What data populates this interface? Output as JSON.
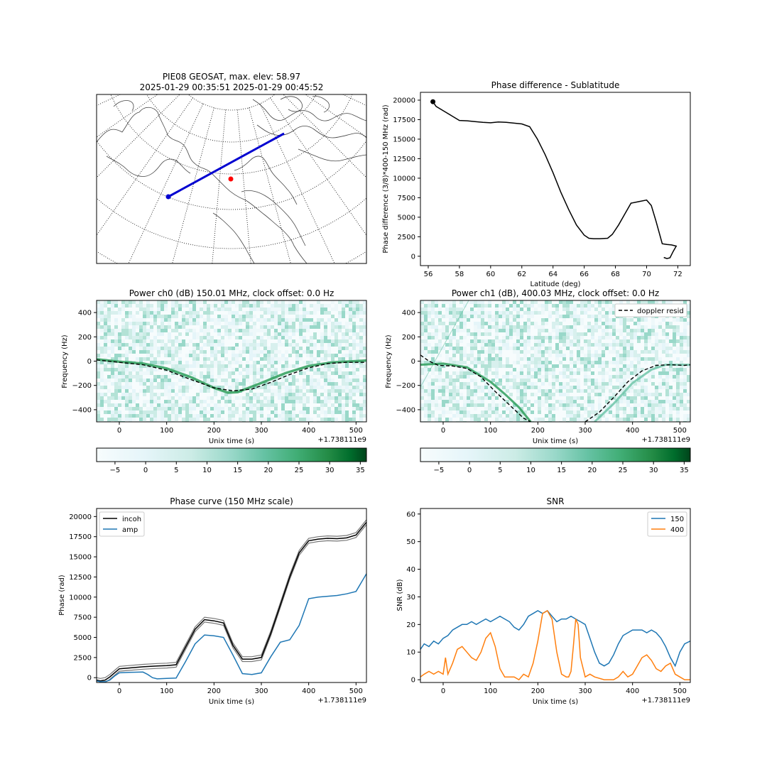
{
  "chart_data": [
    {
      "id": "map",
      "type": "map",
      "title": [
        "PIE08 GEOSAT, max. elev: 58.97",
        "2025-01-29 00:35:51 2025-01-29 00:45:52"
      ],
      "colors": {
        "track": "#0000d0",
        "station": "#ff0000"
      }
    },
    {
      "id": "phase_lat",
      "type": "line",
      "title": "Phase difference - Sublatitude",
      "xlabel": "Latitude (deg)",
      "ylabel": "Phase difference (3/8)*400-150 MHz (rad)",
      "xlim": [
        55.5,
        72.8
      ],
      "ylim": [
        -1200,
        21000
      ],
      "xticks": [
        56,
        58,
        60,
        62,
        64,
        66,
        68,
        70,
        72
      ],
      "xtick_labels": [
        "56",
        "58",
        "60",
        "62",
        "64",
        "66",
        "68",
        "70",
        "72"
      ],
      "yticks": [
        0,
        2500,
        5000,
        7500,
        10000,
        12500,
        15000,
        17500,
        20000
      ],
      "ytick_labels": [
        "0",
        "2500",
        "5000",
        "7500",
        "10000",
        "12500",
        "15000",
        "17500",
        "20000"
      ],
      "x": [
        56.3,
        56.5,
        57,
        57.5,
        58,
        58.5,
        59,
        59.5,
        60,
        60.5,
        61,
        61.5,
        62,
        62.5,
        63,
        63.5,
        64,
        64.5,
        65,
        65.5,
        66,
        66.3,
        66.6,
        67,
        67.5,
        67.8,
        68.2,
        68.6,
        69,
        69.5,
        70,
        70.3,
        70.6,
        71,
        71.3,
        71.6,
        71.9,
        71.7,
        71.5,
        71.3,
        71.1
      ],
      "y": [
        19800,
        19200,
        18600,
        18000,
        17400,
        17350,
        17250,
        17150,
        17100,
        17200,
        17150,
        17050,
        16950,
        16600,
        15000,
        13000,
        10700,
        8200,
        6000,
        4000,
        2700,
        2300,
        2250,
        2250,
        2300,
        2800,
        4000,
        5400,
        6800,
        7000,
        7200,
        6500,
        4500,
        1600,
        1500,
        1450,
        1300,
        600,
        -200,
        -300,
        -150
      ],
      "marker": {
        "x": 56.3,
        "y": 19800
      },
      "colors": {
        "line": "#000000"
      }
    },
    {
      "id": "power_ch0",
      "type": "heatmap",
      "title": "Power ch0 (dB) 150.01 MHz, clock offset: 0.0 Hz",
      "xlabel": "Unix time (s)",
      "ylabel": "Frequency (Hz)",
      "offset_label": "+1.738111e9",
      "xlim": [
        -48,
        522
      ],
      "ylim": [
        -500,
        500
      ],
      "xticks": [
        0,
        100,
        200,
        300,
        400,
        500
      ],
      "xtick_labels": [
        "0",
        "100",
        "200",
        "300",
        "400",
        "500"
      ],
      "yticks": [
        -400,
        -200,
        0,
        200,
        400
      ],
      "ytick_labels": [
        "−400",
        "−200",
        "0",
        "200",
        "400"
      ],
      "signal_x": [
        -48,
        0,
        50,
        100,
        150,
        200,
        230,
        250,
        300,
        350,
        400,
        450,
        500,
        522
      ],
      "signal_y": [
        15,
        -5,
        -20,
        -60,
        -130,
        -220,
        -260,
        -255,
        -180,
        -100,
        -40,
        -10,
        0,
        5
      ],
      "doppler_x": [
        -48,
        0,
        50,
        100,
        150,
        200,
        240,
        280,
        320,
        360,
        400,
        440,
        480,
        522
      ],
      "doppler_y": [
        10,
        -10,
        -30,
        -75,
        -150,
        -220,
        -245,
        -230,
        -175,
        -110,
        -55,
        -20,
        -10,
        -10
      ],
      "colorbar": {
        "ticks": [
          -5,
          0,
          5,
          10,
          15,
          20,
          25,
          30,
          35
        ],
        "tick_labels": [
          "−5",
          "0",
          "5",
          "10",
          "15",
          "20",
          "25",
          "30",
          "35"
        ],
        "range": [
          -8,
          36
        ]
      },
      "colors": {
        "signal": "#2e9e5b",
        "doppler": "#000000"
      }
    },
    {
      "id": "power_ch1",
      "type": "heatmap",
      "title": "Power ch1 (dB), 400.03 MHz, clock offset: 0.0 Hz",
      "xlabel": "Unix time (s)",
      "ylabel": "Frequency (Hz)",
      "offset_label": "+1.738111e9",
      "xlim": [
        -48,
        522
      ],
      "ylim": [
        -500,
        500
      ],
      "xticks": [
        0,
        100,
        200,
        300,
        400,
        500
      ],
      "xtick_labels": [
        "0",
        "100",
        "200",
        "300",
        "400",
        "500"
      ],
      "yticks": [
        -400,
        -200,
        0,
        200,
        400
      ],
      "ytick_labels": [
        "−400",
        "−200",
        "0",
        "200",
        "400"
      ],
      "legend": [
        "doppler resid"
      ],
      "legend_position": "top-right",
      "signal_x": [
        -48,
        0,
        50,
        100,
        130,
        160,
        185
      ],
      "signal_y": [
        -30,
        -20,
        -50,
        -170,
        -270,
        -380,
        -500
      ],
      "signal2_x": [
        320,
        360,
        400,
        440,
        470,
        522
      ],
      "signal2_y": [
        -500,
        -350,
        -180,
        -70,
        -30,
        -30
      ],
      "doppler_x": [
        -48,
        -30,
        -10,
        20,
        50,
        80,
        110,
        140,
        170,
        185
      ],
      "doppler_y": [
        50,
        0,
        -35,
        -40,
        -60,
        -130,
        -250,
        -360,
        -470,
        -500
      ],
      "doppler2_x": [
        300,
        330,
        360,
        390,
        420,
        450,
        480,
        510,
        522
      ],
      "doppler2_y": [
        -500,
        -420,
        -300,
        -170,
        -80,
        -35,
        -30,
        -35,
        -30
      ],
      "colorbar": {
        "ticks": [
          -5,
          0,
          5,
          10,
          15,
          20,
          25,
          30,
          35
        ],
        "tick_labels": [
          "−5",
          "0",
          "5",
          "10",
          "15",
          "20",
          "25",
          "30",
          "35"
        ],
        "range": [
          -8,
          36
        ]
      },
      "colors": {
        "signal": "#2e9e5b",
        "doppler": "#000000"
      }
    },
    {
      "id": "phase_curve",
      "type": "line",
      "title": "Phase curve (150 MHz scale)",
      "xlabel": "Unix time (s)",
      "ylabel": "Phase (rad)",
      "offset_label": "+1.738111e9",
      "xlim": [
        -48,
        522
      ],
      "ylim": [
        -600,
        21000
      ],
      "xticks": [
        0,
        100,
        200,
        300,
        400,
        500
      ],
      "xtick_labels": [
        "0",
        "100",
        "200",
        "300",
        "400",
        "500"
      ],
      "yticks": [
        0,
        2500,
        5000,
        7500,
        10000,
        12500,
        15000,
        17500,
        20000
      ],
      "ytick_labels": [
        "0",
        "2500",
        "5000",
        "7500",
        "10000",
        "12500",
        "15000",
        "17500",
        "20000"
      ],
      "legend": [
        "incoh",
        "amp"
      ],
      "legend_position": "top-left",
      "series": [
        {
          "name": "incoh",
          "x": [
            -48,
            -40,
            -30,
            -20,
            -10,
            0,
            20,
            50,
            80,
            100,
            120,
            140,
            160,
            180,
            200,
            220,
            240,
            260,
            280,
            300,
            320,
            340,
            360,
            380,
            400,
            420,
            440,
            460,
            480,
            500,
            522
          ],
          "y": [
            -300,
            -400,
            -300,
            100,
            600,
            1100,
            1200,
            1350,
            1450,
            1500,
            1600,
            3800,
            6000,
            7200,
            7050,
            6800,
            4000,
            2300,
            2300,
            2500,
            5500,
            9000,
            12500,
            15500,
            17000,
            17200,
            17300,
            17250,
            17350,
            17700,
            19300
          ]
        },
        {
          "name": "amp",
          "x": [
            -48,
            -40,
            -30,
            -20,
            -10,
            0,
            20,
            50,
            60,
            70,
            80,
            100,
            120,
            140,
            160,
            180,
            200,
            220,
            240,
            260,
            280,
            300,
            320,
            340,
            360,
            380,
            400,
            420,
            440,
            460,
            480,
            500,
            522
          ],
          "y": [
            -400,
            -500,
            -500,
            -300,
            200,
            600,
            650,
            700,
            400,
            0,
            -150,
            -100,
            -50,
            2000,
            4200,
            5300,
            5200,
            5000,
            2800,
            500,
            400,
            600,
            2600,
            4400,
            4700,
            6500,
            9800,
            10000,
            10100,
            10200,
            10400,
            10700,
            12900
          ]
        }
      ],
      "envelope_offset": 300,
      "colors": {
        "incoh": "#000000",
        "envelope": "#777777",
        "amp": "#1f77b4"
      }
    },
    {
      "id": "snr",
      "type": "line",
      "title": "SNR",
      "xlabel": "Unix time (s)",
      "ylabel": "SNR (dB)",
      "offset_label": "+1.738111e9",
      "xlim": [
        -48,
        522
      ],
      "ylim": [
        -1,
        62
      ],
      "xticks": [
        0,
        100,
        200,
        300,
        400,
        500
      ],
      "xtick_labels": [
        "0",
        "100",
        "200",
        "300",
        "400",
        "500"
      ],
      "yticks": [
        0,
        10,
        20,
        30,
        40,
        50,
        60
      ],
      "ytick_labels": [
        "0",
        "10",
        "20",
        "30",
        "40",
        "50",
        "60"
      ],
      "legend": [
        "150",
        "400"
      ],
      "legend_position": "top-right",
      "series": [
        {
          "name": "150",
          "x": [
            -48,
            -40,
            -30,
            -20,
            -10,
            0,
            10,
            20,
            30,
            40,
            50,
            60,
            70,
            80,
            90,
            100,
            110,
            120,
            130,
            140,
            150,
            160,
            170,
            180,
            190,
            200,
            210,
            220,
            230,
            240,
            250,
            260,
            270,
            280,
            290,
            300,
            310,
            320,
            330,
            340,
            350,
            360,
            370,
            380,
            390,
            400,
            410,
            420,
            430,
            440,
            450,
            460,
            470,
            480,
            490,
            500,
            510,
            522
          ],
          "y": [
            11,
            13,
            12,
            14,
            13,
            15,
            16,
            18,
            19,
            20,
            20,
            21,
            20,
            21,
            22,
            21,
            22,
            23,
            22,
            21,
            19,
            18,
            20,
            23,
            24,
            25,
            24,
            25,
            23,
            21,
            22,
            22,
            23,
            22,
            21,
            20,
            15,
            10,
            6,
            5,
            6,
            9,
            13,
            16,
            17,
            18,
            18,
            18,
            17,
            18,
            17,
            15,
            12,
            8,
            5,
            10,
            13,
            14
          ]
        },
        {
          "name": "400",
          "x": [
            -48,
            -40,
            -30,
            -20,
            -10,
            0,
            5,
            10,
            20,
            30,
            40,
            50,
            60,
            70,
            80,
            90,
            100,
            110,
            120,
            130,
            140,
            150,
            160,
            170,
            180,
            190,
            200,
            210,
            220,
            230,
            240,
            250,
            260,
            265,
            270,
            275,
            280,
            285,
            290,
            300,
            310,
            320,
            340,
            360,
            370,
            380,
            390,
            400,
            410,
            420,
            430,
            440,
            450,
            460,
            470,
            480,
            490,
            500,
            510,
            522
          ],
          "y": [
            1,
            2,
            3,
            2,
            3,
            2,
            8,
            2,
            6,
            11,
            12,
            10,
            8,
            7,
            10,
            15,
            17,
            12,
            4,
            1,
            1,
            1,
            0,
            2,
            1,
            6,
            14,
            24,
            25,
            22,
            10,
            2,
            1,
            1,
            3,
            12,
            22,
            20,
            8,
            1,
            2,
            1,
            0,
            0,
            1,
            3,
            1,
            2,
            5,
            8,
            9,
            7,
            4,
            3,
            5,
            6,
            2,
            1,
            0,
            0
          ]
        }
      ],
      "colors": {
        "150": "#1f77b4",
        "400": "#ff7f0e"
      }
    }
  ]
}
